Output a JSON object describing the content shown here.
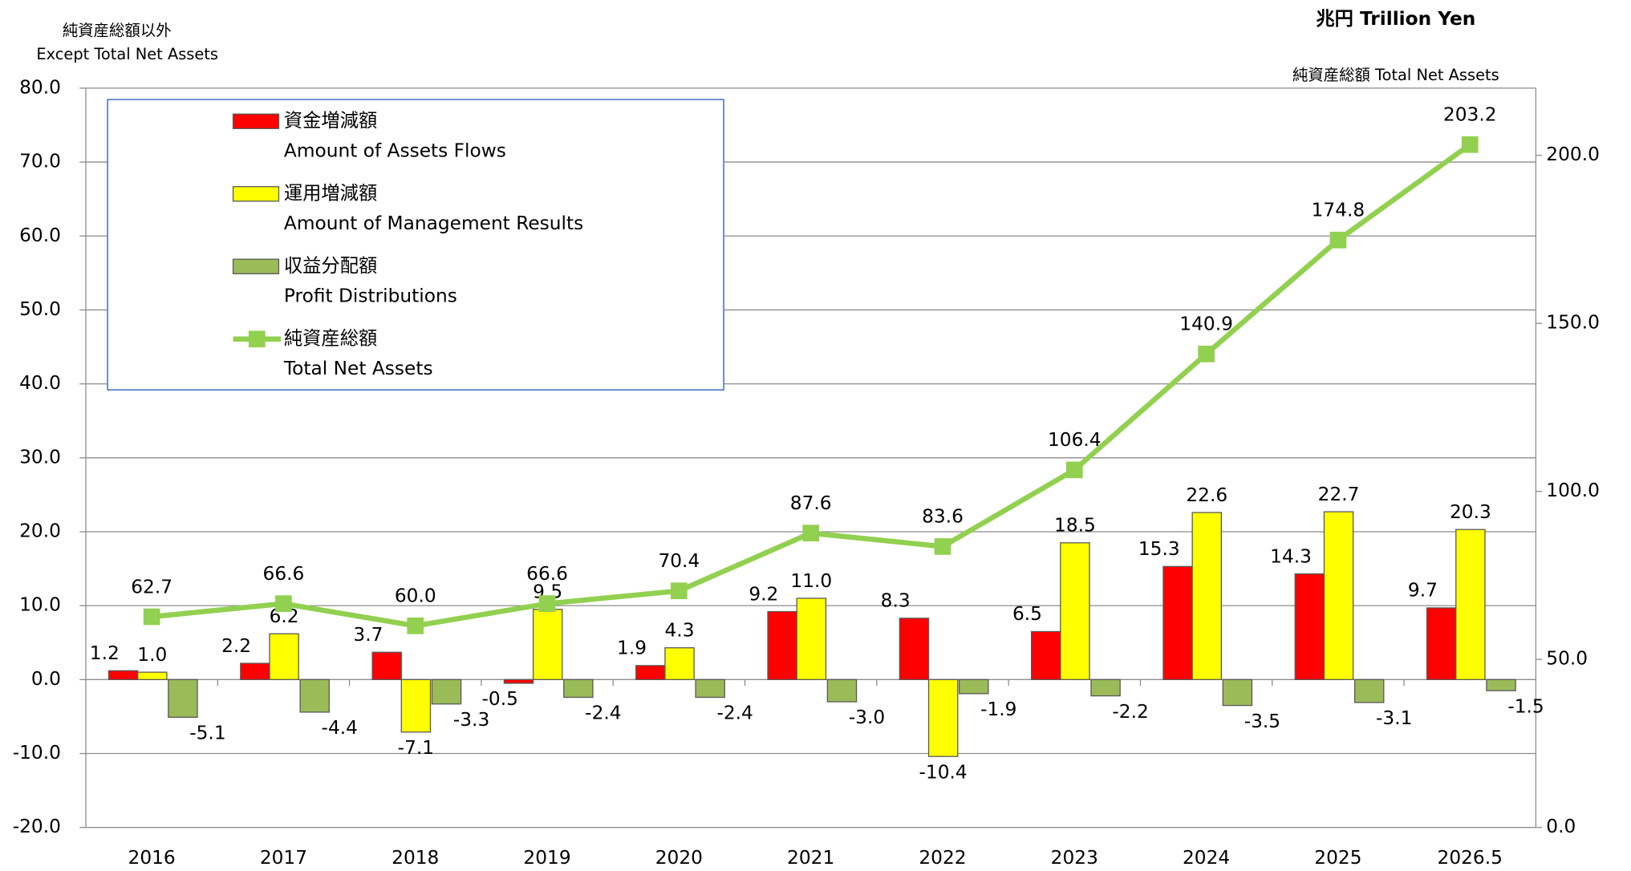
{
  "chart_data": {
    "type": "bar_line",
    "y_axis_title": "純資産総額以外",
    "y_axis_title_en": "Except Total Net Assets",
    "unit_title": "兆円 Trillion Yen",
    "y2_axis_title": "純資産総額 Total Net Assets",
    "categories": [
      "2016",
      "2017",
      "2018",
      "2019",
      "2020",
      "2021",
      "2022",
      "2023",
      "2024",
      "2025",
      "2026.5"
    ],
    "series": [
      {
        "name": "資金増減額",
        "name_en": "Amount of Assets Flows",
        "type": "bar",
        "color": "#ff0000",
        "values": [
          1.2,
          2.2,
          3.7,
          -0.5,
          1.9,
          9.2,
          8.3,
          6.5,
          15.3,
          14.3,
          9.7
        ],
        "value_labels": [
          "1.2",
          "2.2",
          "3.7",
          "-0.5",
          "1.9",
          "9.2",
          "8.3",
          "6.5",
          "15.3",
          "14.3",
          "9.7"
        ]
      },
      {
        "name": "運用増減額",
        "name_en": "Amount of Management Results",
        "type": "bar",
        "color": "#ffff00",
        "values": [
          1.0,
          6.2,
          -7.1,
          9.5,
          4.3,
          11.0,
          -10.4,
          18.5,
          22.6,
          22.7,
          20.3
        ],
        "value_labels": [
          "1.0",
          "6.2",
          "-7.1",
          "9.5",
          "4.3",
          "11.0",
          "-10.4",
          "18.5",
          "22.6",
          "22.7",
          "20.3"
        ]
      },
      {
        "name": "収益分配額",
        "name_en": "Profit Distributions",
        "type": "bar",
        "color": "#9bbb59",
        "values": [
          -5.1,
          -4.4,
          -3.3,
          -2.4,
          -2.4,
          -3.0,
          -1.9,
          -2.2,
          -3.5,
          -3.1,
          -1.5
        ],
        "value_labels": [
          "-5.1",
          "-4.4",
          "-3.3",
          "-2.4",
          "-2.4",
          "-3.0",
          "-1.9",
          "-2.2",
          "-3.5",
          "-3.1",
          "-1.5"
        ]
      },
      {
        "name": "純資産総額",
        "name_en": "Total Net Assets",
        "type": "line",
        "axis": "y2",
        "color": "#92d050",
        "values": [
          62.7,
          66.6,
          60.0,
          66.6,
          70.4,
          87.6,
          83.6,
          106.4,
          140.9,
          174.8,
          203.2
        ],
        "value_labels": [
          "62.7",
          "66.6",
          "60.0",
          "66.6",
          "70.4",
          "87.6",
          "83.6",
          "106.4",
          "140.9",
          "174.8",
          "203.2"
        ]
      }
    ],
    "ylim": [
      -20,
      80
    ],
    "yticks": [
      {
        "value": -20,
        "label": "-20.0"
      },
      {
        "value": -10,
        "label": "-10.0"
      },
      {
        "value": 0,
        "label": "0.0"
      },
      {
        "value": 10,
        "label": "10.0"
      },
      {
        "value": 20,
        "label": "20.0"
      },
      {
        "value": 30,
        "label": "30.0"
      },
      {
        "value": 40,
        "label": "40.0"
      },
      {
        "value": 50,
        "label": "50.0"
      },
      {
        "value": 60,
        "label": "60.0"
      },
      {
        "value": 70,
        "label": "70.0"
      },
      {
        "value": 80,
        "label": "80.0"
      }
    ],
    "y2lim": [
      0,
      220
    ],
    "y2ticks": [
      {
        "value": 0,
        "label": "0.0"
      },
      {
        "value": 50,
        "label": "50.0"
      },
      {
        "value": 100,
        "label": "100.0"
      },
      {
        "value": 150,
        "label": "150.0"
      },
      {
        "value": 200,
        "label": "200.0"
      }
    ],
    "grid": true,
    "legend": "upper left"
  }
}
